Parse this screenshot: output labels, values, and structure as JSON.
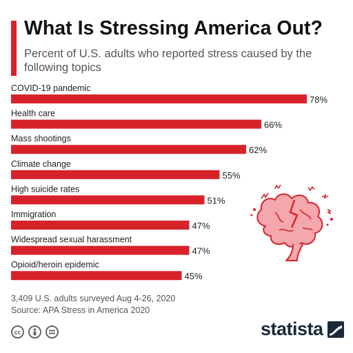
{
  "header": {
    "title": "What Is Stressing America Out?",
    "subtitle": "Percent of U.S. adults who reported stress caused by the following topics"
  },
  "chart_data": {
    "type": "bar",
    "orientation": "horizontal",
    "categories": [
      "COVID-19 pandemic",
      "Health care",
      "Mass shootings",
      "Climate change",
      "High suicide rates",
      "Immigration",
      "Widespread sexual harassment",
      "Opioid/heroin epidemic"
    ],
    "values": [
      78,
      66,
      62,
      55,
      51,
      47,
      47,
      45
    ],
    "value_suffix": "%",
    "xlim": [
      0,
      100
    ],
    "grid": false,
    "bar_color": "#d7222a"
  },
  "footer": {
    "sample_note": "3,409 U.S. adults surveyed Aug 4-26, 2020",
    "source": "Source: APA Stress in America 2020",
    "license_icons": [
      "cc-icon",
      "attribution-icon",
      "no-derivatives-icon"
    ],
    "brand": "statista"
  },
  "colors": {
    "accent": "#d7222a",
    "brain": "#f4a7ac",
    "brain_outline": "#d7222a"
  }
}
